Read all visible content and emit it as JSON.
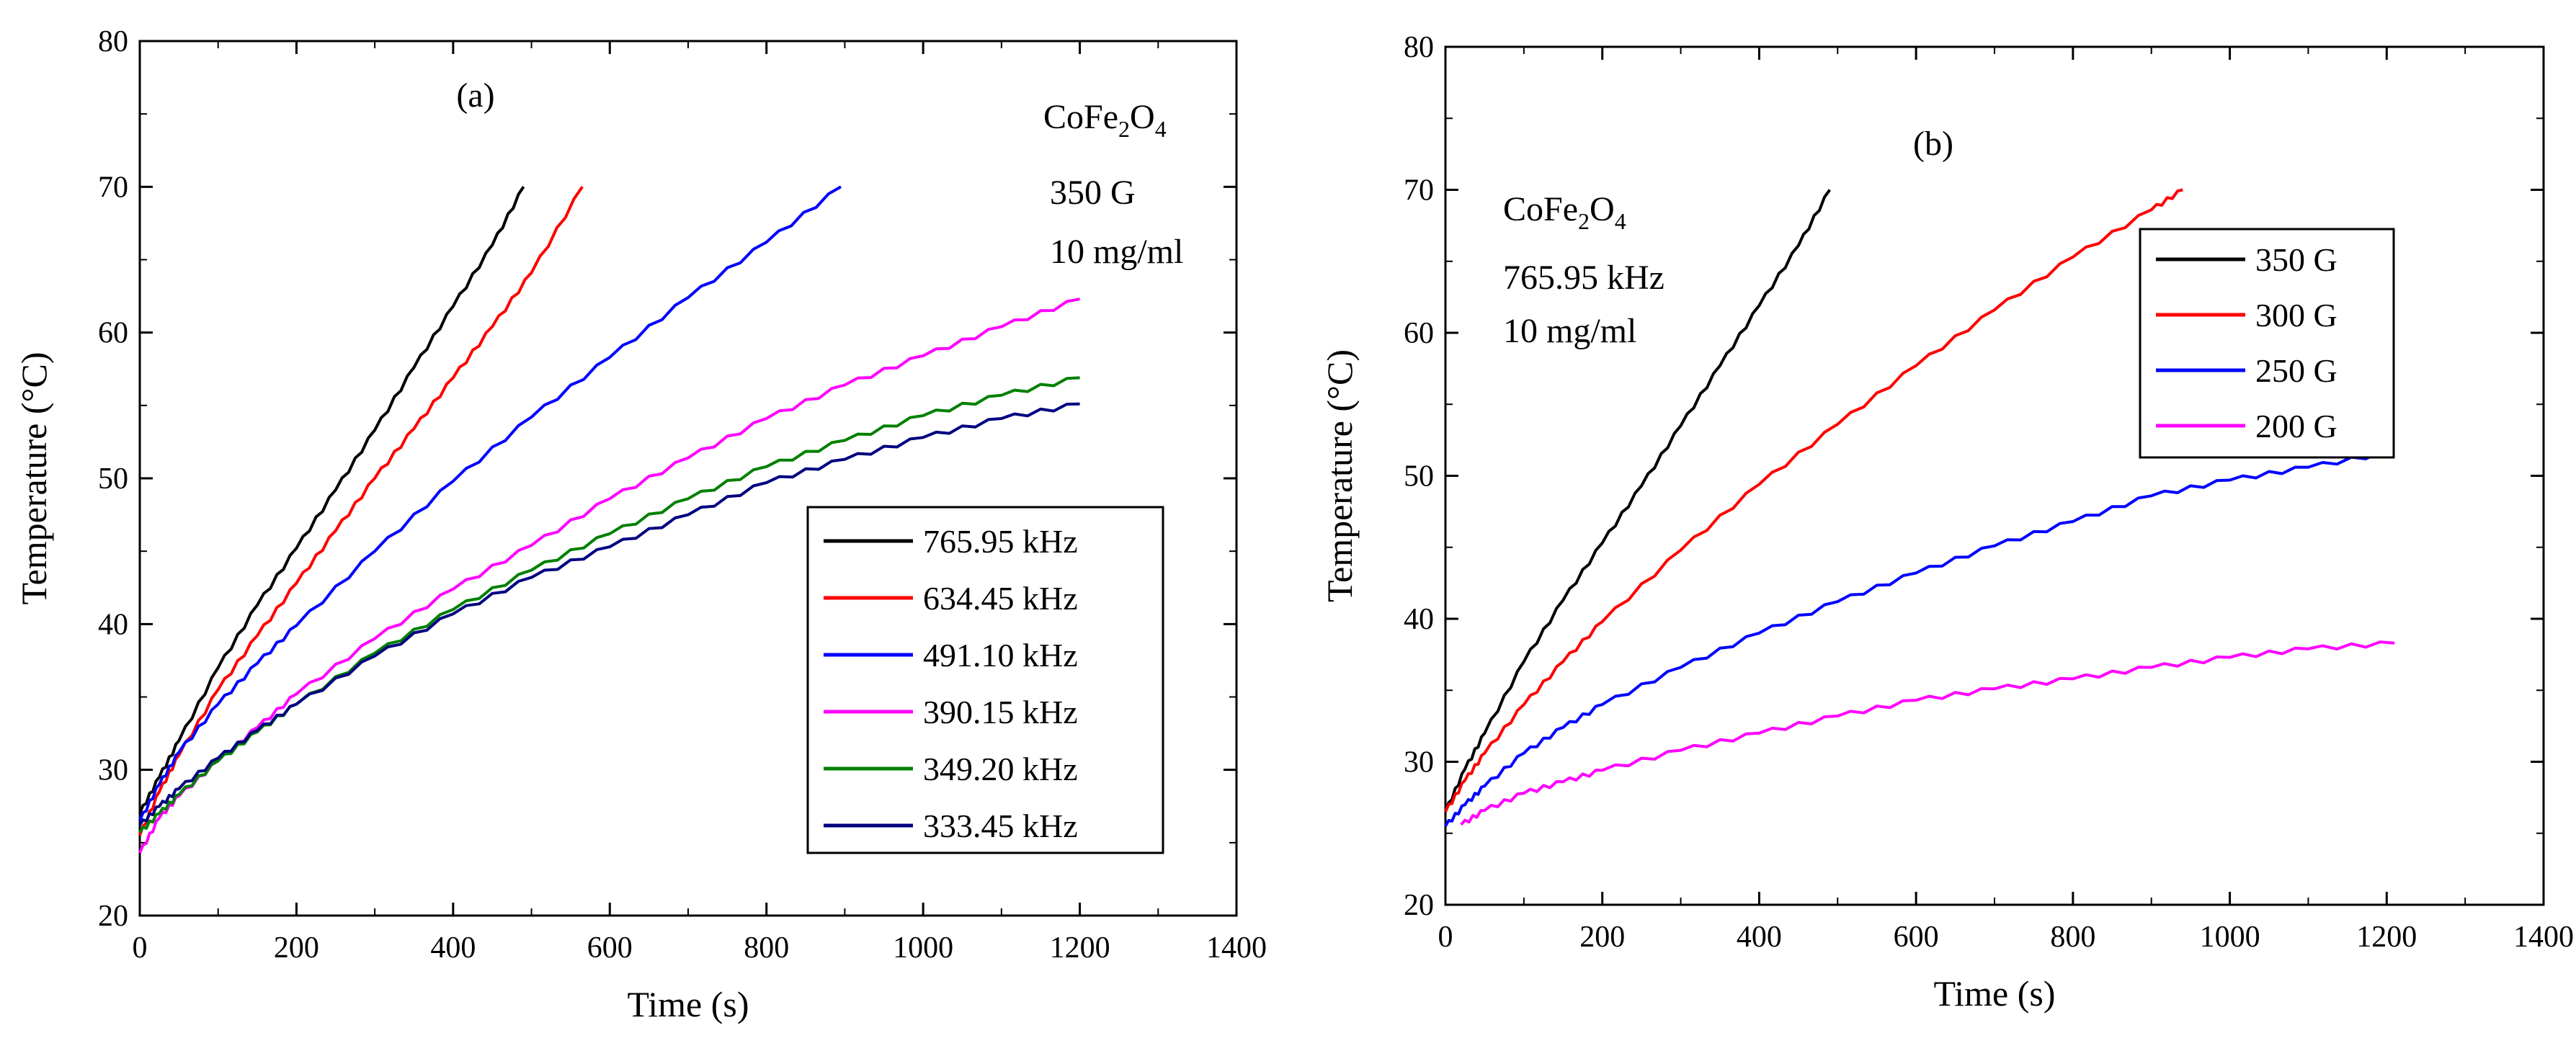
{
  "chart_data": [
    {
      "type": "line",
      "panel_label": "(a)",
      "xlabel": "Time (s)",
      "ylabel": "Temperature (°C)",
      "xlim": [
        0,
        1400
      ],
      "ylim": [
        20,
        80
      ],
      "x_ticks": [
        0,
        200,
        400,
        600,
        800,
        1000,
        1200,
        1400
      ],
      "y_ticks": [
        20,
        30,
        40,
        50,
        60,
        70,
        80
      ],
      "annotations": {
        "material_base": "CoFe",
        "sub1": "2",
        "material_mid": "O",
        "sub2": "4",
        "line2": "350 G",
        "line3": "10 mg/ml"
      },
      "legend_position": "center-right",
      "series": [
        {
          "name": "765.95 kHz",
          "color": "#000000",
          "x": [
            0,
            25,
            50,
            100,
            150,
            200,
            250,
            300,
            350,
            400,
            450,
            490
          ],
          "y": [
            27,
            29.5,
            32,
            37,
            41.3,
            45.2,
            49.2,
            53.3,
            57.6,
            61.8,
            66,
            70
          ]
        },
        {
          "name": "634.45 kHz",
          "color": "#ff0000",
          "x": [
            0,
            25,
            50,
            100,
            150,
            200,
            250,
            300,
            350,
            400,
            450,
            500,
            565
          ],
          "y": [
            25.5,
            28.5,
            31,
            35.5,
            39.2,
            42.8,
            46.4,
            50,
            53.4,
            56.9,
            60.4,
            64.1,
            70
          ]
        },
        {
          "name": "491.10 kHz",
          "color": "#0000ff",
          "x": [
            0,
            25,
            50,
            100,
            150,
            200,
            300,
            400,
            500,
            600,
            700,
            800,
            895
          ],
          "y": [
            26.5,
            29,
            31.2,
            34.5,
            37.3,
            39.9,
            45,
            49.8,
            54.2,
            58.3,
            62.4,
            66.2,
            70
          ]
        },
        {
          "name": "390.15 kHz",
          "color": "#ff00ff",
          "x": [
            0,
            25,
            50,
            100,
            150,
            200,
            300,
            400,
            500,
            600,
            700,
            800,
            900,
            1000,
            1100,
            1200
          ],
          "y": [
            24.3,
            26.7,
            28.2,
            30.6,
            32.9,
            35.2,
            39,
            42.4,
            45.4,
            48.6,
            51.4,
            54.1,
            56.4,
            58.4,
            60.4,
            62.3
          ]
        },
        {
          "name": "349.20 kHz",
          "color": "#008000",
          "x": [
            0,
            25,
            50,
            100,
            150,
            200,
            300,
            400,
            500,
            600,
            700,
            800,
            900,
            1000,
            1100,
            1200
          ],
          "y": [
            25.7,
            27,
            28.3,
            30.6,
            32.6,
            34.5,
            38,
            41,
            43.7,
            46.2,
            48.6,
            50.8,
            52.6,
            54.3,
            55.7,
            56.9
          ]
        },
        {
          "name": "333.45 kHz",
          "color": "#000080",
          "x": [
            0,
            25,
            50,
            100,
            150,
            200,
            300,
            400,
            500,
            600,
            700,
            800,
            900,
            1000,
            1100,
            1200
          ],
          "y": [
            26.2,
            27.5,
            28.7,
            30.8,
            32.7,
            34.5,
            37.8,
            40.7,
            43.2,
            45.3,
            47.5,
            49.7,
            51.3,
            52.8,
            54.1,
            55.1
          ]
        }
      ]
    },
    {
      "type": "line",
      "panel_label": "(b)",
      "xlabel": "Time (s)",
      "ylabel": "Temperature (°C)",
      "xlim": [
        0,
        1400
      ],
      "ylim": [
        20,
        80
      ],
      "x_ticks": [
        0,
        200,
        400,
        600,
        800,
        1000,
        1200,
        1400
      ],
      "y_ticks": [
        20,
        30,
        40,
        50,
        60,
        70,
        80
      ],
      "annotations": {
        "material_base": "CoFe",
        "sub1": "2",
        "material_mid": "O",
        "sub2": "4",
        "line2": "765.95 kHz",
        "line3": "10 mg/ml"
      },
      "legend_position": "top-right",
      "series": [
        {
          "name": "350 G",
          "color": "#000000",
          "x": [
            0,
            25,
            50,
            100,
            150,
            200,
            250,
            300,
            350,
            400,
            450,
            490
          ],
          "y": [
            26.5,
            29.5,
            32,
            37,
            41.3,
            45.3,
            49.3,
            53.5,
            57.7,
            61.9,
            66.1,
            70
          ]
        },
        {
          "name": "300 G",
          "color": "#ff0000",
          "x": [
            0,
            25,
            50,
            100,
            150,
            200,
            300,
            400,
            500,
            600,
            700,
            800,
            900,
            940
          ],
          "y": [
            26.5,
            28.7,
            30.6,
            34,
            37,
            39.8,
            44.8,
            49.4,
            53.6,
            57.7,
            61.6,
            65.3,
            68.6,
            70
          ]
        },
        {
          "name": "250 G",
          "color": "#0000ff",
          "x": [
            0,
            25,
            50,
            100,
            150,
            200,
            300,
            400,
            500,
            600,
            700,
            800,
            900,
            1000,
            1100,
            1210
          ],
          "y": [
            25.5,
            27,
            28.3,
            30.6,
            32.4,
            34,
            36.6,
            39,
            41.2,
            43.2,
            45.1,
            46.8,
            48.6,
            49.7,
            50.6,
            51.7
          ]
        },
        {
          "name": "200 G",
          "color": "#ff00ff",
          "x": [
            20,
            50,
            100,
            150,
            200,
            300,
            400,
            500,
            600,
            700,
            800,
            900,
            1000,
            1100,
            1210
          ],
          "y": [
            25.6,
            26.6,
            27.8,
            28.6,
            29.4,
            30.8,
            32,
            33.2,
            34.3,
            35.1,
            35.8,
            36.6,
            37.3,
            37.9,
            38.3
          ]
        }
      ]
    }
  ]
}
